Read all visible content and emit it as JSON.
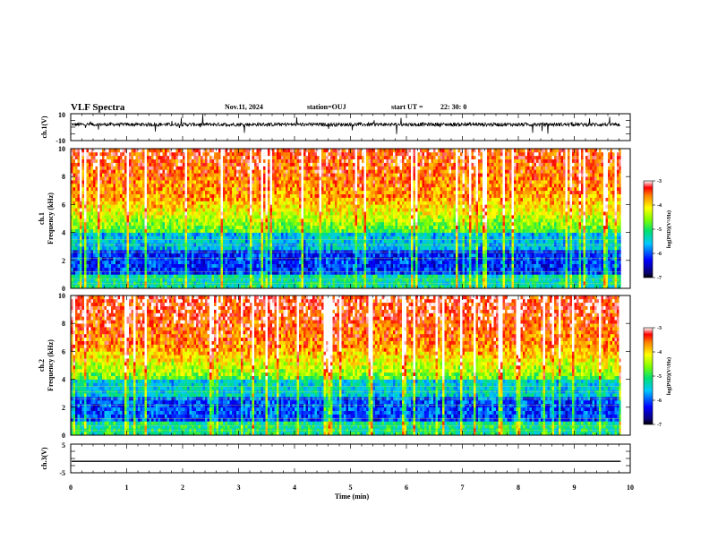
{
  "header": {
    "title": "VLF Spectra",
    "date": "Nov.11, 2024",
    "station": "station=OUJ",
    "start_label": "start  UT  =",
    "start_time": "22: 30: 0"
  },
  "chart_data": [
    {
      "id": "ch1-waveform",
      "type": "line",
      "ylabel": "ch.1(V)",
      "ylim": [
        -10,
        10
      ],
      "ytick_labels": [
        "10",
        "-10"
      ],
      "xlim": [
        0,
        10
      ],
      "baseline_value": 2,
      "data_end_min": 9.83
    },
    {
      "id": "ch1-spectrogram",
      "type": "heatmap",
      "ylabel_line1": "ch.1",
      "ylabel_line2": "Frequency  (kHz)",
      "ylim": [
        0,
        10
      ],
      "ytick_labels": [
        "0",
        "2",
        "4",
        "6",
        "8",
        "10"
      ],
      "xlim": [
        0,
        10
      ],
      "data_end_min": 9.83,
      "colorbar": {
        "title": "log(PSD)(V²/Hz)",
        "range": [
          -7,
          -3
        ],
        "tick_labels": [
          "-3",
          "-4",
          "-5",
          "-6",
          "-7"
        ]
      }
    },
    {
      "id": "ch2-spectrogram",
      "type": "heatmap",
      "ylabel_line1": "ch.2",
      "ylabel_line2": "Frequency  (kHz)",
      "ylim": [
        0,
        10
      ],
      "ytick_labels": [
        "0",
        "2",
        "4",
        "6",
        "8",
        "10"
      ],
      "xlim": [
        0,
        10
      ],
      "data_end_min": 9.83,
      "colorbar": {
        "title": "log(PSD)(V²/Hz)",
        "range": [
          -7,
          -3
        ],
        "tick_labels": [
          "-3",
          "-4",
          "-5",
          "-6",
          "-7"
        ]
      }
    },
    {
      "id": "ch3-waveform",
      "type": "line",
      "ylabel": "ch.3(V)",
      "ylim": [
        -5,
        5
      ],
      "ytick_labels": [
        "5",
        "-5"
      ],
      "xlim": [
        0,
        10
      ],
      "baseline_value": -1,
      "data_end_min": 9.83,
      "xlabel": "Time  (min)",
      "xtick_labels": [
        "0",
        "1",
        "2",
        "3",
        "4",
        "5",
        "6",
        "7",
        "8",
        "9",
        "10"
      ]
    }
  ]
}
